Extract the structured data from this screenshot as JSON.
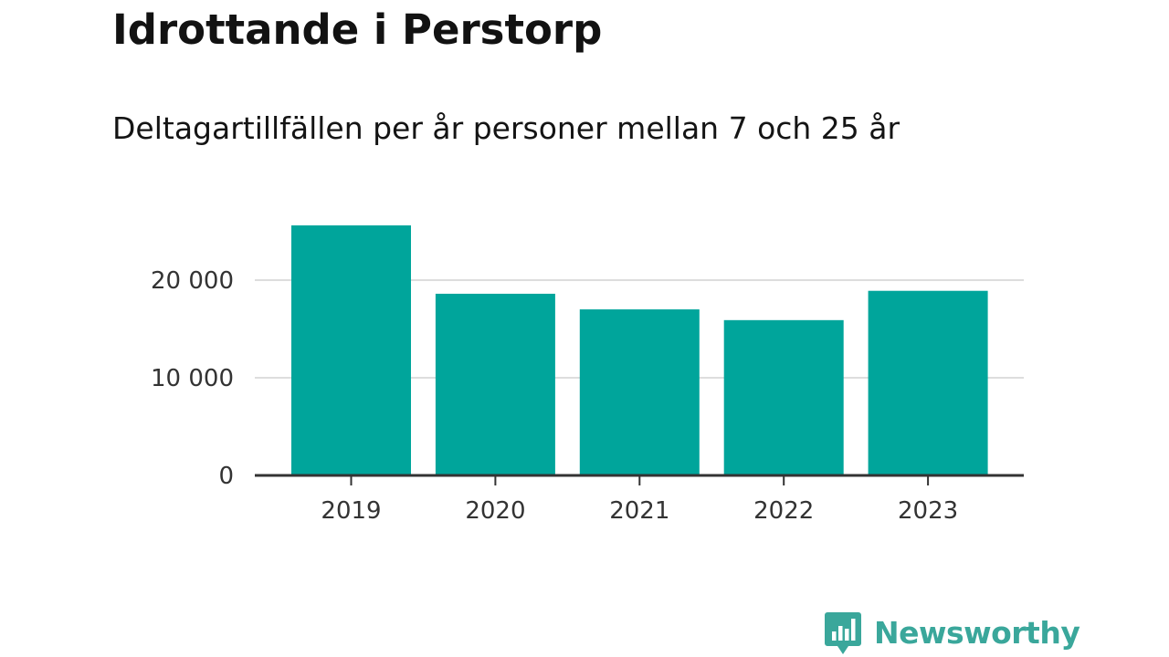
{
  "chart_data": {
    "type": "bar",
    "title": "Idrottande i Perstorp",
    "subtitle": "Deltagartillfällen per år personer mellan 7 och 25 år",
    "categories": [
      "2019",
      "2020",
      "2021",
      "2022",
      "2023"
    ],
    "values": [
      25600,
      18600,
      17000,
      15900,
      18900
    ],
    "ylim": [
      0,
      25600
    ],
    "yticks": [
      0,
      10000,
      20000
    ],
    "ytick_labels": [
      "0",
      "10 000",
      "20 000"
    ],
    "xlabel": "",
    "ylabel": "",
    "grid": true,
    "bar_color": "#00a59b",
    "grid_color": "#dddddd",
    "axis_color": "#333333"
  },
  "brand": {
    "name": "Newsworthy",
    "icon": "newsworthy-bar-chart-bubble-icon",
    "color": "#3aa79b",
    "icon_color": "#3aa79b"
  }
}
